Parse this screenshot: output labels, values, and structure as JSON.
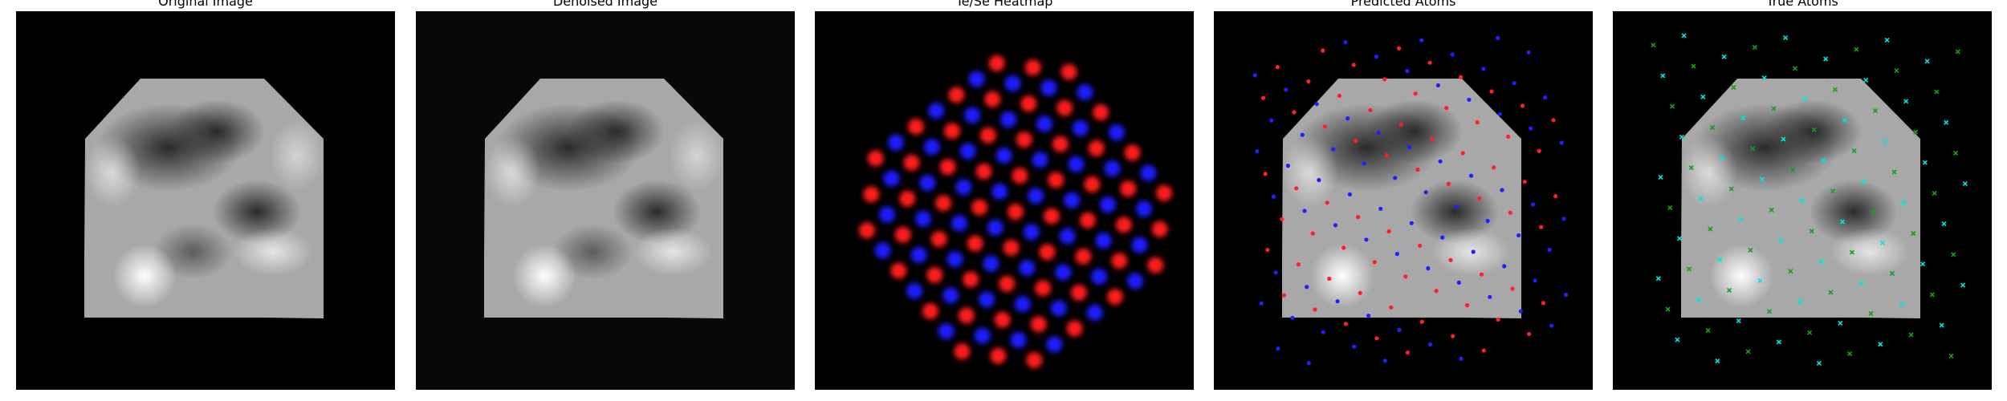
{
  "panels": [
    {
      "title": "Original Image"
    },
    {
      "title": "Denoised Image"
    },
    {
      "title": "Te/Se Heatmap"
    },
    {
      "title": "Predicted Atoms"
    },
    {
      "title": "True Atoms"
    }
  ],
  "colors": {
    "te": "#ff1a1a",
    "se": "#1a1aff",
    "pred_red": "#ff2020",
    "pred_blue": "#2020ff",
    "true_cyan": "#00e5e5",
    "true_green": "#16a016",
    "background": "#000000"
  }
}
